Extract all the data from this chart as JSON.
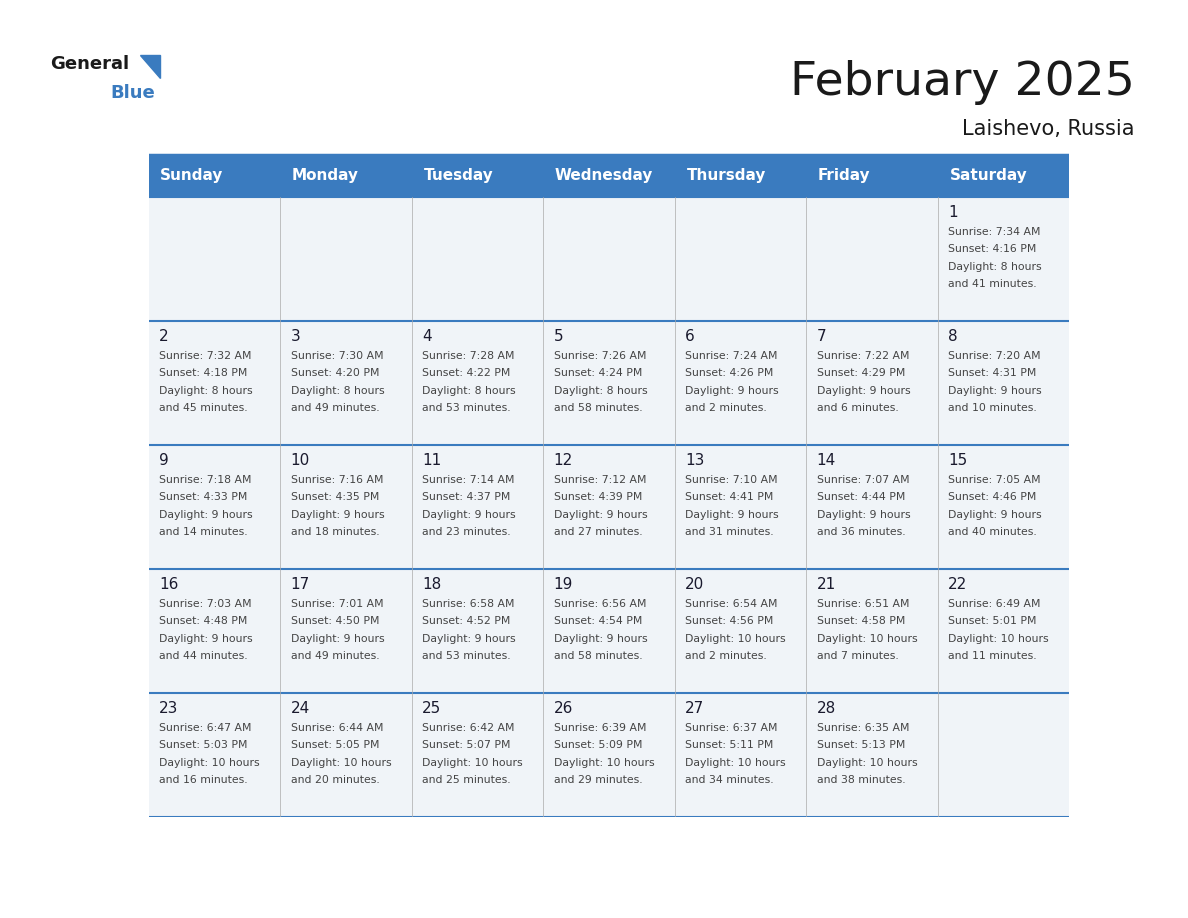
{
  "title": "February 2025",
  "subtitle": "Laishevo, Russia",
  "header_bg_color": "#3a7bbf",
  "header_text_color": "#ffffff",
  "cell_bg_color": "#f0f4f8",
  "cell_text_color": "#333333",
  "border_color": "#3a7bbf",
  "day_headers": [
    "Sunday",
    "Monday",
    "Tuesday",
    "Wednesday",
    "Thursday",
    "Friday",
    "Saturday"
  ],
  "days": [
    {
      "day": 1,
      "col": 6,
      "row": 0,
      "sunrise": "7:34 AM",
      "sunset": "4:16 PM",
      "daylight": "8 hours and 41 minutes."
    },
    {
      "day": 2,
      "col": 0,
      "row": 1,
      "sunrise": "7:32 AM",
      "sunset": "4:18 PM",
      "daylight": "8 hours and 45 minutes."
    },
    {
      "day": 3,
      "col": 1,
      "row": 1,
      "sunrise": "7:30 AM",
      "sunset": "4:20 PM",
      "daylight": "8 hours and 49 minutes."
    },
    {
      "day": 4,
      "col": 2,
      "row": 1,
      "sunrise": "7:28 AM",
      "sunset": "4:22 PM",
      "daylight": "8 hours and 53 minutes."
    },
    {
      "day": 5,
      "col": 3,
      "row": 1,
      "sunrise": "7:26 AM",
      "sunset": "4:24 PM",
      "daylight": "8 hours and 58 minutes."
    },
    {
      "day": 6,
      "col": 4,
      "row": 1,
      "sunrise": "7:24 AM",
      "sunset": "4:26 PM",
      "daylight": "9 hours and 2 minutes."
    },
    {
      "day": 7,
      "col": 5,
      "row": 1,
      "sunrise": "7:22 AM",
      "sunset": "4:29 PM",
      "daylight": "9 hours and 6 minutes."
    },
    {
      "day": 8,
      "col": 6,
      "row": 1,
      "sunrise": "7:20 AM",
      "sunset": "4:31 PM",
      "daylight": "9 hours and 10 minutes."
    },
    {
      "day": 9,
      "col": 0,
      "row": 2,
      "sunrise": "7:18 AM",
      "sunset": "4:33 PM",
      "daylight": "9 hours and 14 minutes."
    },
    {
      "day": 10,
      "col": 1,
      "row": 2,
      "sunrise": "7:16 AM",
      "sunset": "4:35 PM",
      "daylight": "9 hours and 18 minutes."
    },
    {
      "day": 11,
      "col": 2,
      "row": 2,
      "sunrise": "7:14 AM",
      "sunset": "4:37 PM",
      "daylight": "9 hours and 23 minutes."
    },
    {
      "day": 12,
      "col": 3,
      "row": 2,
      "sunrise": "7:12 AM",
      "sunset": "4:39 PM",
      "daylight": "9 hours and 27 minutes."
    },
    {
      "day": 13,
      "col": 4,
      "row": 2,
      "sunrise": "7:10 AM",
      "sunset": "4:41 PM",
      "daylight": "9 hours and 31 minutes."
    },
    {
      "day": 14,
      "col": 5,
      "row": 2,
      "sunrise": "7:07 AM",
      "sunset": "4:44 PM",
      "daylight": "9 hours and 36 minutes."
    },
    {
      "day": 15,
      "col": 6,
      "row": 2,
      "sunrise": "7:05 AM",
      "sunset": "4:46 PM",
      "daylight": "9 hours and 40 minutes."
    },
    {
      "day": 16,
      "col": 0,
      "row": 3,
      "sunrise": "7:03 AM",
      "sunset": "4:48 PM",
      "daylight": "9 hours and 44 minutes."
    },
    {
      "day": 17,
      "col": 1,
      "row": 3,
      "sunrise": "7:01 AM",
      "sunset": "4:50 PM",
      "daylight": "9 hours and 49 minutes."
    },
    {
      "day": 18,
      "col": 2,
      "row": 3,
      "sunrise": "6:58 AM",
      "sunset": "4:52 PM",
      "daylight": "9 hours and 53 minutes."
    },
    {
      "day": 19,
      "col": 3,
      "row": 3,
      "sunrise": "6:56 AM",
      "sunset": "4:54 PM",
      "daylight": "9 hours and 58 minutes."
    },
    {
      "day": 20,
      "col": 4,
      "row": 3,
      "sunrise": "6:54 AM",
      "sunset": "4:56 PM",
      "daylight": "10 hours and 2 minutes."
    },
    {
      "day": 21,
      "col": 5,
      "row": 3,
      "sunrise": "6:51 AM",
      "sunset": "4:58 PM",
      "daylight": "10 hours and 7 minutes."
    },
    {
      "day": 22,
      "col": 6,
      "row": 3,
      "sunrise": "6:49 AM",
      "sunset": "5:01 PM",
      "daylight": "10 hours and 11 minutes."
    },
    {
      "day": 23,
      "col": 0,
      "row": 4,
      "sunrise": "6:47 AM",
      "sunset": "5:03 PM",
      "daylight": "10 hours and 16 minutes."
    },
    {
      "day": 24,
      "col": 1,
      "row": 4,
      "sunrise": "6:44 AM",
      "sunset": "5:05 PM",
      "daylight": "10 hours and 20 minutes."
    },
    {
      "day": 25,
      "col": 2,
      "row": 4,
      "sunrise": "6:42 AM",
      "sunset": "5:07 PM",
      "daylight": "10 hours and 25 minutes."
    },
    {
      "day": 26,
      "col": 3,
      "row": 4,
      "sunrise": "6:39 AM",
      "sunset": "5:09 PM",
      "daylight": "10 hours and 29 minutes."
    },
    {
      "day": 27,
      "col": 4,
      "row": 4,
      "sunrise": "6:37 AM",
      "sunset": "5:11 PM",
      "daylight": "10 hours and 34 minutes."
    },
    {
      "day": 28,
      "col": 5,
      "row": 4,
      "sunrise": "6:35 AM",
      "sunset": "5:13 PM",
      "daylight": "10 hours and 38 minutes."
    }
  ]
}
